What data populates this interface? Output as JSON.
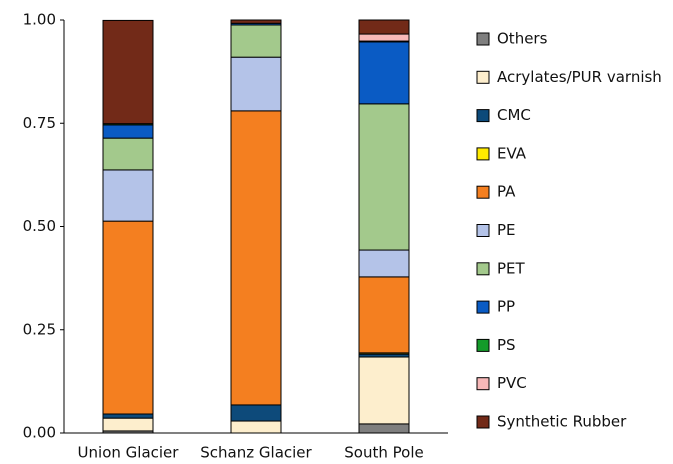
{
  "chart_data": {
    "type": "stacked_bar",
    "categories": [
      "Union Glacier",
      "Schanz Glacier",
      "South Pole"
    ],
    "series": [
      {
        "name": "Others",
        "color": "#7f7f7f",
        "values": [
          0.005,
          0,
          0.022
        ]
      },
      {
        "name": "Acrylates/PUR varnish",
        "color": "#fdeecd",
        "values": [
          0.031,
          0.029,
          0.162
        ]
      },
      {
        "name": "CMC",
        "color": "#0d4a7a",
        "values": [
          0.01,
          0.039,
          0.007
        ]
      },
      {
        "name": "EVA",
        "color": "#ffeb00",
        "values": [
          0,
          0,
          0.003
        ]
      },
      {
        "name": "PA",
        "color": "#f47f20",
        "values": [
          0.467,
          0.712,
          0.184
        ]
      },
      {
        "name": "PE",
        "color": "#b4c3e8",
        "values": [
          0.124,
          0.13,
          0.065
        ]
      },
      {
        "name": "PET",
        "color": "#a3c98c",
        "values": [
          0.077,
          0.078,
          0.354
        ]
      },
      {
        "name": "PP",
        "color": "#0a5bc4",
        "values": [
          0.032,
          0.004,
          0.15
        ]
      },
      {
        "name": "PS",
        "color": "#149b2a",
        "values": [
          0.003,
          0,
          0.002
        ]
      },
      {
        "name": "PVC",
        "color": "#f7b8b8",
        "values": [
          0,
          0,
          0.017
        ]
      },
      {
        "name": "Synthetic Rubber",
        "color": "#722a18",
        "values": [
          0.25,
          0.008,
          0.034
        ]
      }
    ],
    "ylim": [
      0,
      1
    ],
    "yticks": [
      {
        "value": 0,
        "label": "0.00"
      },
      {
        "value": 0.25,
        "label": "0.25"
      },
      {
        "value": 0.5,
        "label": "0.50"
      },
      {
        "value": 0.75,
        "label": "0.75"
      },
      {
        "value": 1,
        "label": "1.00"
      }
    ],
    "grid": false
  }
}
